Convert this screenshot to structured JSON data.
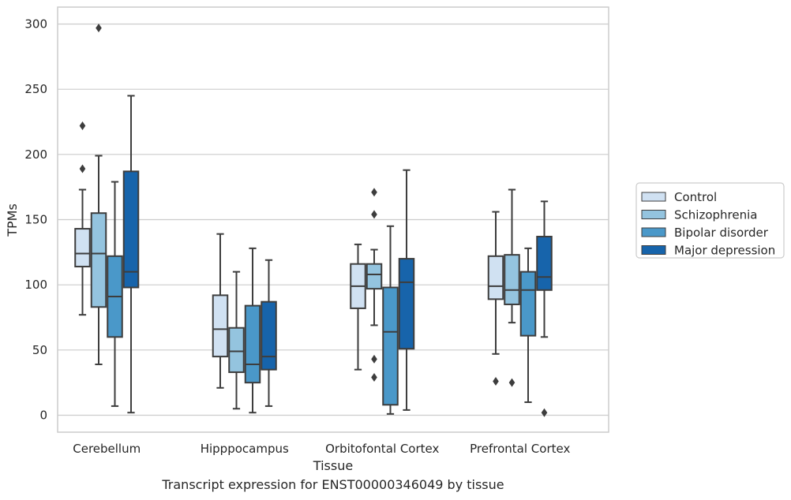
{
  "caption": "Transcript expression for ENST00000346049 by tissue",
  "chart_data": {
    "type": "box",
    "xlabel": "Tissue",
    "ylabel": "TPMs",
    "ylim": [
      -13,
      313
    ],
    "yticks": [
      0,
      50,
      100,
      150,
      200,
      250,
      300
    ],
    "grid": "horizontal",
    "legend_position": "right",
    "categories": [
      "Cerebellum",
      "Hipppocampus",
      "Orbitofontal Cortex",
      "Prefrontal Cortex"
    ],
    "series": [
      {
        "name": "Control",
        "color": "#d0e1f2",
        "boxes": [
          {
            "whisker_low": 77,
            "q1": 114,
            "median": 124,
            "q3": 143,
            "whisker_high": 173,
            "outliers": [
              189,
              222
            ]
          },
          {
            "whisker_low": 21,
            "q1": 45,
            "median": 66,
            "q3": 92,
            "whisker_high": 139,
            "outliers": []
          },
          {
            "whisker_low": 35,
            "q1": 82,
            "median": 99,
            "q3": 116,
            "whisker_high": 131,
            "outliers": []
          },
          {
            "whisker_low": 47,
            "q1": 89,
            "median": 99,
            "q3": 122,
            "whisker_high": 156,
            "outliers": [
              26
            ]
          }
        ]
      },
      {
        "name": "Schizophrenia",
        "color": "#94c4df",
        "boxes": [
          {
            "whisker_low": 39,
            "q1": 83,
            "median": 124,
            "q3": 155,
            "whisker_high": 199,
            "outliers": [
              297
            ]
          },
          {
            "whisker_low": 5,
            "q1": 33,
            "median": 49,
            "q3": 67,
            "whisker_high": 110,
            "outliers": []
          },
          {
            "whisker_low": 69,
            "q1": 97,
            "median": 108,
            "q3": 116,
            "whisker_high": 127,
            "outliers": [
              43,
              29,
              154,
              171
            ]
          },
          {
            "whisker_low": 71,
            "q1": 85,
            "median": 96,
            "q3": 123,
            "whisker_high": 173,
            "outliers": [
              25
            ]
          }
        ]
      },
      {
        "name": "Bipolar disorder",
        "color": "#4a98c9",
        "boxes": [
          {
            "whisker_low": 7,
            "q1": 60,
            "median": 91,
            "q3": 122,
            "whisker_high": 179,
            "outliers": []
          },
          {
            "whisker_low": 2,
            "q1": 25,
            "median": 39,
            "q3": 84,
            "whisker_high": 128,
            "outliers": []
          },
          {
            "whisker_low": 1,
            "q1": 8,
            "median": 64,
            "q3": 98,
            "whisker_high": 145,
            "outliers": []
          },
          {
            "whisker_low": 10,
            "q1": 61,
            "median": 96,
            "q3": 110,
            "whisker_high": 128,
            "outliers": []
          }
        ]
      },
      {
        "name": "Major depression",
        "color": "#1764ab",
        "boxes": [
          {
            "whisker_low": 2,
            "q1": 98,
            "median": 110,
            "q3": 187,
            "whisker_high": 245,
            "outliers": []
          },
          {
            "whisker_low": 7,
            "q1": 35,
            "median": 45,
            "q3": 87,
            "whisker_high": 119,
            "outliers": []
          },
          {
            "whisker_low": 4,
            "q1": 51,
            "median": 102,
            "q3": 120,
            "whisker_high": 188,
            "outliers": []
          },
          {
            "whisker_low": 60,
            "q1": 96,
            "median": 106,
            "q3": 137,
            "whisker_high": 164,
            "outliers": [
              2
            ]
          }
        ]
      }
    ]
  }
}
